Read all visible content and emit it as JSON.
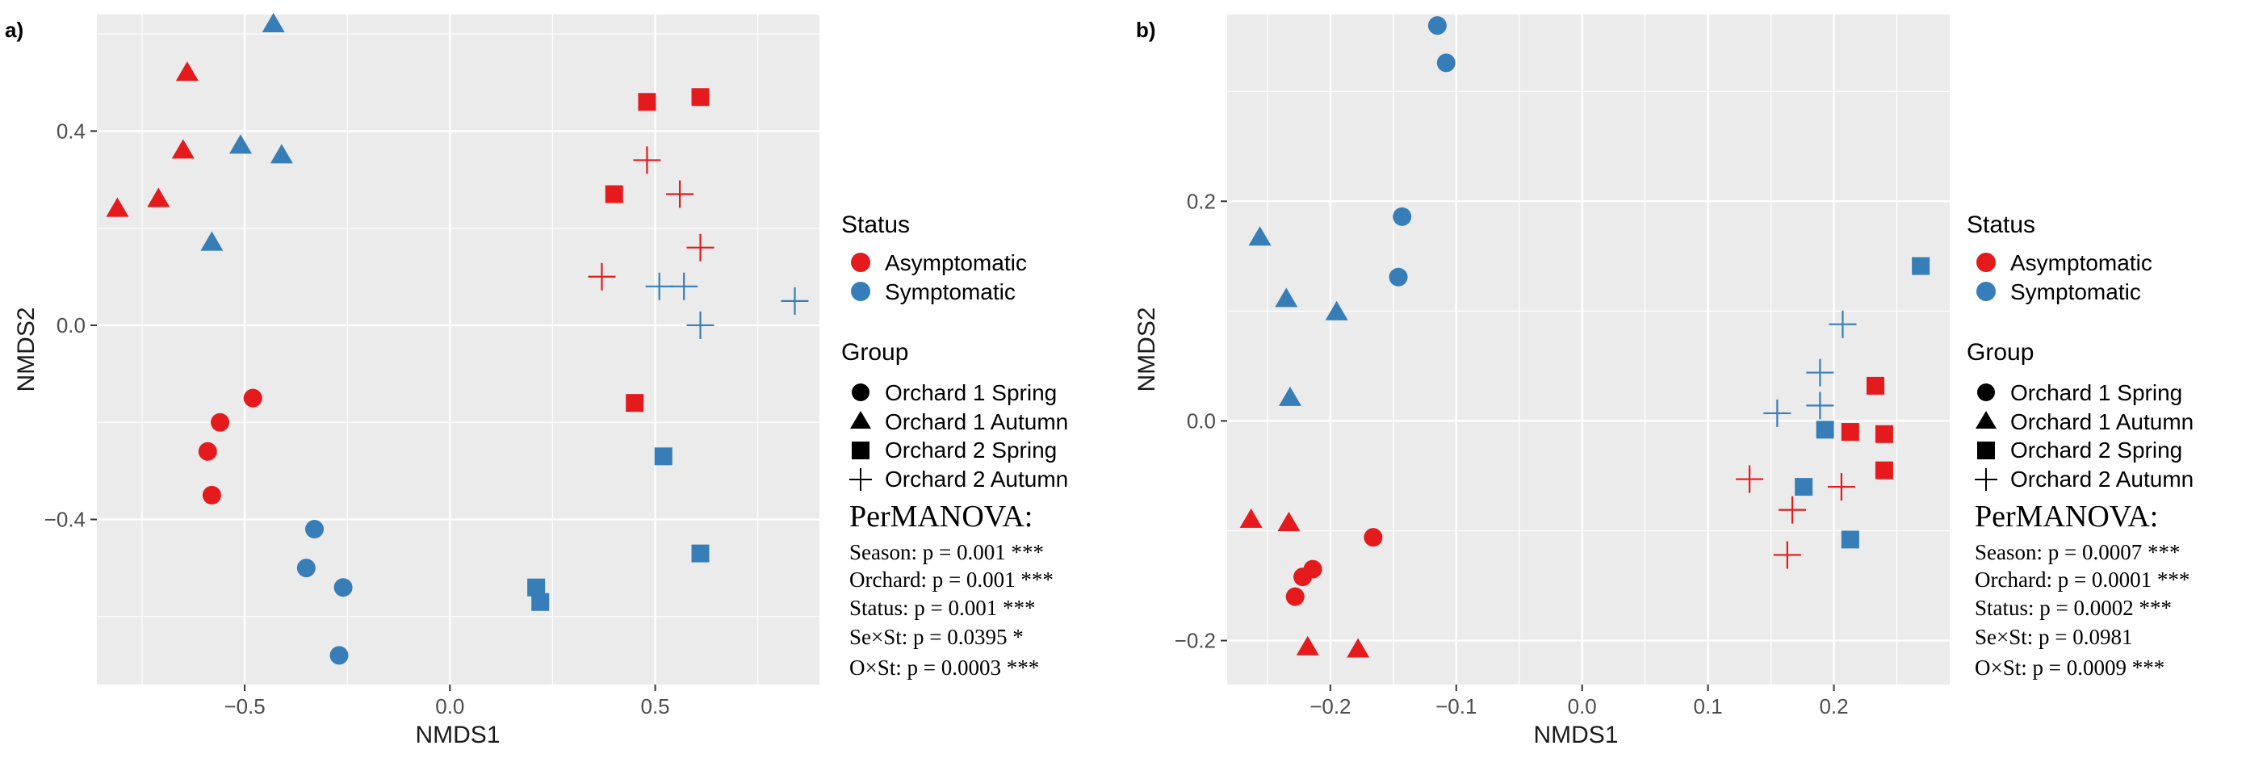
{
  "colors": {
    "asymptomatic": "#E41A1C",
    "symptomatic": "#377EB8",
    "panel_bg": "#EBEBEB",
    "grid": "#FFFFFF",
    "tick_text": "#4D4D4D"
  },
  "legend": {
    "status_title": "Status",
    "status_items": [
      "Asymptomatic",
      "Symptomatic"
    ],
    "group_title": "Group",
    "group_items": [
      "Orchard 1 Spring",
      "Orchard 1 Autumn",
      "Orchard 2 Spring",
      "Orchard 2 Autumn"
    ]
  },
  "chart_data": [
    {
      "type": "scatter",
      "panel_label": "a)",
      "xlabel": "NMDS1",
      "ylabel": "NMDS2",
      "xlim": [
        -0.86,
        0.9
      ],
      "ylim": [
        -0.74,
        0.64
      ],
      "xticks": [
        -0.5,
        0.0,
        0.5
      ],
      "xtick_labels": [
        "-0.5",
        "0.0",
        "0.5"
      ],
      "yticks": [
        -0.4,
        0.0,
        0.4
      ],
      "ytick_labels": [
        "-0.4",
        "0.0",
        "0.4"
      ],
      "points": [
        {
          "x": -0.64,
          "y": 0.52,
          "status": "Asymptomatic",
          "group": "Orchard 1 Autumn"
        },
        {
          "x": -0.65,
          "y": 0.36,
          "status": "Asymptomatic",
          "group": "Orchard 1 Autumn"
        },
        {
          "x": -0.71,
          "y": 0.26,
          "status": "Asymptomatic",
          "group": "Orchard 1 Autumn"
        },
        {
          "x": -0.81,
          "y": 0.24,
          "status": "Asymptomatic",
          "group": "Orchard 1 Autumn"
        },
        {
          "x": -0.43,
          "y": 0.62,
          "status": "Symptomatic",
          "group": "Orchard 1 Autumn"
        },
        {
          "x": -0.51,
          "y": 0.37,
          "status": "Symptomatic",
          "group": "Orchard 1 Autumn"
        },
        {
          "x": -0.41,
          "y": 0.35,
          "status": "Symptomatic",
          "group": "Orchard 1 Autumn"
        },
        {
          "x": -0.58,
          "y": 0.17,
          "status": "Symptomatic",
          "group": "Orchard 1 Autumn"
        },
        {
          "x": -0.48,
          "y": -0.15,
          "status": "Asymptomatic",
          "group": "Orchard 1 Spring"
        },
        {
          "x": -0.56,
          "y": -0.2,
          "status": "Asymptomatic",
          "group": "Orchard 1 Spring"
        },
        {
          "x": -0.59,
          "y": -0.26,
          "status": "Asymptomatic",
          "group": "Orchard 1 Spring"
        },
        {
          "x": -0.58,
          "y": -0.35,
          "status": "Asymptomatic",
          "group": "Orchard 1 Spring"
        },
        {
          "x": -0.33,
          "y": -0.42,
          "status": "Symptomatic",
          "group": "Orchard 1 Spring"
        },
        {
          "x": -0.35,
          "y": -0.5,
          "status": "Symptomatic",
          "group": "Orchard 1 Spring"
        },
        {
          "x": -0.26,
          "y": -0.54,
          "status": "Symptomatic",
          "group": "Orchard 1 Spring"
        },
        {
          "x": -0.27,
          "y": -0.68,
          "status": "Symptomatic",
          "group": "Orchard 1 Spring"
        },
        {
          "x": 0.48,
          "y": 0.46,
          "status": "Asymptomatic",
          "group": "Orchard 2 Spring"
        },
        {
          "x": 0.61,
          "y": 0.47,
          "status": "Asymptomatic",
          "group": "Orchard 2 Spring"
        },
        {
          "x": 0.4,
          "y": 0.27,
          "status": "Asymptomatic",
          "group": "Orchard 2 Spring"
        },
        {
          "x": 0.45,
          "y": -0.16,
          "status": "Asymptomatic",
          "group": "Orchard 2 Spring"
        },
        {
          "x": 0.52,
          "y": -0.27,
          "status": "Symptomatic",
          "group": "Orchard 2 Spring"
        },
        {
          "x": 0.61,
          "y": -0.47,
          "status": "Symptomatic",
          "group": "Orchard 2 Spring"
        },
        {
          "x": 0.21,
          "y": -0.54,
          "status": "Symptomatic",
          "group": "Orchard 2 Spring"
        },
        {
          "x": 0.22,
          "y": -0.57,
          "status": "Symptomatic",
          "group": "Orchard 2 Spring"
        },
        {
          "x": 0.48,
          "y": 0.34,
          "status": "Asymptomatic",
          "group": "Orchard 2 Autumn"
        },
        {
          "x": 0.56,
          "y": 0.27,
          "status": "Asymptomatic",
          "group": "Orchard 2 Autumn"
        },
        {
          "x": 0.61,
          "y": 0.16,
          "status": "Asymptomatic",
          "group": "Orchard 2 Autumn"
        },
        {
          "x": 0.37,
          "y": 0.1,
          "status": "Asymptomatic",
          "group": "Orchard 2 Autumn"
        },
        {
          "x": 0.51,
          "y": 0.08,
          "status": "Symptomatic",
          "group": "Orchard 2 Autumn"
        },
        {
          "x": 0.57,
          "y": 0.08,
          "status": "Symptomatic",
          "group": "Orchard 2 Autumn"
        },
        {
          "x": 0.61,
          "y": 0.0,
          "status": "Symptomatic",
          "group": "Orchard 2 Autumn"
        },
        {
          "x": 0.84,
          "y": 0.05,
          "status": "Symptomatic",
          "group": "Orchard 2 Autumn"
        }
      ],
      "permanova": {
        "title": "PerMANOVA:",
        "lines": [
          "Season: p = 0.001 ***",
          "Orchard: p = 0.001 ***",
          "Status: p = 0.001 ***",
          "Se×St: p = 0.0395 *",
          "O×St: p = 0.0003 ***"
        ]
      }
    },
    {
      "type": "scatter",
      "panel_label": "b)",
      "xlabel": "NMDS1",
      "ylabel": "NMDS2",
      "xlim": [
        -0.282,
        0.292
      ],
      "ylim": [
        -0.24,
        0.37
      ],
      "xticks": [
        -0.2,
        -0.1,
        0.0,
        0.1,
        0.2
      ],
      "xtick_labels": [
        "-0.2",
        "-0.1",
        "0.0",
        "0.1",
        "0.2"
      ],
      "yticks": [
        -0.2,
        0.0,
        0.2
      ],
      "ytick_labels": [
        "-0.2",
        "0.0",
        "0.2"
      ],
      "points": [
        {
          "x": -0.115,
          "y": 0.36,
          "status": "Symptomatic",
          "group": "Orchard 1 Spring"
        },
        {
          "x": -0.108,
          "y": 0.326,
          "status": "Symptomatic",
          "group": "Orchard 1 Spring"
        },
        {
          "x": -0.143,
          "y": 0.186,
          "status": "Symptomatic",
          "group": "Orchard 1 Spring"
        },
        {
          "x": -0.146,
          "y": 0.131,
          "status": "Symptomatic",
          "group": "Orchard 1 Spring"
        },
        {
          "x": -0.166,
          "y": -0.106,
          "status": "Asymptomatic",
          "group": "Orchard 1 Spring"
        },
        {
          "x": -0.214,
          "y": -0.135,
          "status": "Asymptomatic",
          "group": "Orchard 1 Spring"
        },
        {
          "x": -0.222,
          "y": -0.142,
          "status": "Asymptomatic",
          "group": "Orchard 1 Spring"
        },
        {
          "x": -0.228,
          "y": -0.16,
          "status": "Asymptomatic",
          "group": "Orchard 1 Spring"
        },
        {
          "x": -0.256,
          "y": 0.167,
          "status": "Symptomatic",
          "group": "Orchard 1 Autumn"
        },
        {
          "x": -0.235,
          "y": 0.111,
          "status": "Symptomatic",
          "group": "Orchard 1 Autumn"
        },
        {
          "x": -0.195,
          "y": 0.099,
          "status": "Symptomatic",
          "group": "Orchard 1 Autumn"
        },
        {
          "x": -0.232,
          "y": 0.021,
          "status": "Symptomatic",
          "group": "Orchard 1 Autumn"
        },
        {
          "x": -0.263,
          "y": -0.09,
          "status": "Asymptomatic",
          "group": "Orchard 1 Autumn"
        },
        {
          "x": -0.233,
          "y": -0.093,
          "status": "Asymptomatic",
          "group": "Orchard 1 Autumn"
        },
        {
          "x": -0.218,
          "y": -0.206,
          "status": "Asymptomatic",
          "group": "Orchard 1 Autumn"
        },
        {
          "x": -0.178,
          "y": -0.208,
          "status": "Asymptomatic",
          "group": "Orchard 1 Autumn"
        },
        {
          "x": 0.269,
          "y": 0.141,
          "status": "Symptomatic",
          "group": "Orchard 2 Spring"
        },
        {
          "x": 0.193,
          "y": -0.008,
          "status": "Symptomatic",
          "group": "Orchard 2 Spring"
        },
        {
          "x": 0.176,
          "y": -0.06,
          "status": "Symptomatic",
          "group": "Orchard 2 Spring"
        },
        {
          "x": 0.213,
          "y": -0.108,
          "status": "Symptomatic",
          "group": "Orchard 2 Spring"
        },
        {
          "x": 0.233,
          "y": 0.032,
          "status": "Asymptomatic",
          "group": "Orchard 2 Spring"
        },
        {
          "x": 0.213,
          "y": -0.01,
          "status": "Asymptomatic",
          "group": "Orchard 2 Spring"
        },
        {
          "x": 0.24,
          "y": -0.012,
          "status": "Asymptomatic",
          "group": "Orchard 2 Spring"
        },
        {
          "x": 0.24,
          "y": -0.045,
          "status": "Asymptomatic",
          "group": "Orchard 2 Spring"
        },
        {
          "x": 0.207,
          "y": 0.088,
          "status": "Symptomatic",
          "group": "Orchard 2 Autumn"
        },
        {
          "x": 0.189,
          "y": 0.044,
          "status": "Symptomatic",
          "group": "Orchard 2 Autumn"
        },
        {
          "x": 0.189,
          "y": 0.014,
          "status": "Symptomatic",
          "group": "Orchard 2 Autumn"
        },
        {
          "x": 0.155,
          "y": 0.007,
          "status": "Symptomatic",
          "group": "Orchard 2 Autumn"
        },
        {
          "x": 0.133,
          "y": -0.053,
          "status": "Asymptomatic",
          "group": "Orchard 2 Autumn"
        },
        {
          "x": 0.167,
          "y": -0.081,
          "status": "Asymptomatic",
          "group": "Orchard 2 Autumn"
        },
        {
          "x": 0.206,
          "y": -0.06,
          "status": "Asymptomatic",
          "group": "Orchard 2 Autumn"
        },
        {
          "x": 0.163,
          "y": -0.122,
          "status": "Asymptomatic",
          "group": "Orchard 2 Autumn"
        }
      ],
      "permanova": {
        "title": "PerMANOVA:",
        "lines": [
          "Season: p = 0.0007 ***",
          "Orchard: p = 0.0001 ***",
          "Status: p = 0.0002 ***",
          "Se×St: p = 0.0981",
          "O×St: p = 0.0009 ***"
        ]
      }
    }
  ]
}
